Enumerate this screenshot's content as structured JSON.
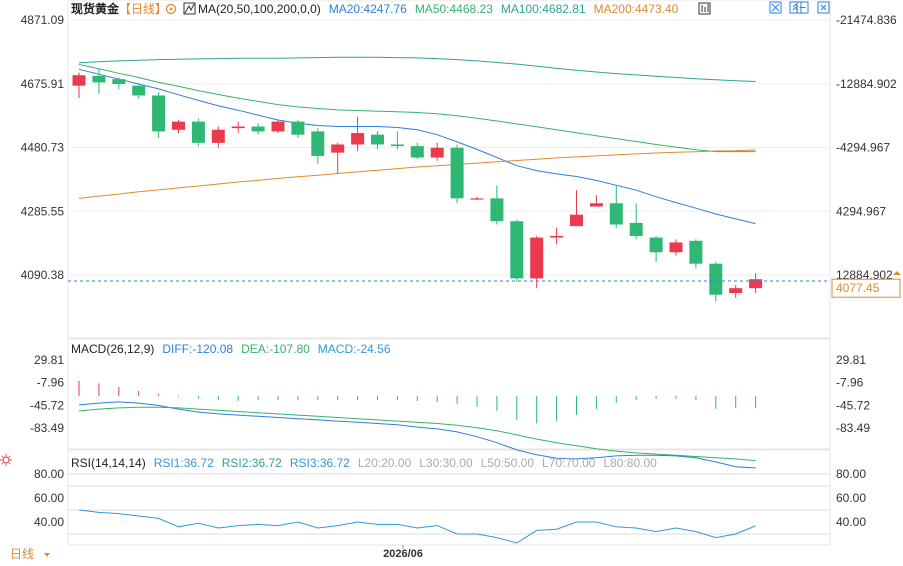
{
  "colors": {
    "up": "#ea3a4d",
    "down": "#2eb873",
    "ma20": "#2f7fd8",
    "ma50": "#36b36b",
    "ma100": "#2ea39a",
    "ma200": "#e08a2e",
    "diff": "#2f7fd8",
    "dea": "#36b36b",
    "rsi1": "#2f9ad8",
    "price_label": "#e08a2e",
    "grid": "#eeeeee",
    "axis_text": "#333333"
  },
  "header": {
    "main": {
      "symbol": "现货黄金",
      "period": "【日线】",
      "ma": "MA(20,50,100,200,0,0)",
      "ma20": "MA20:4247.76",
      "ma50": "MA50:4468.23",
      "ma100": "MA100:4682.81",
      "ma200": "MA200:4473.40"
    },
    "macd": {
      "title": "MACD(26,12,9)",
      "diff": "DIFF:-120.08",
      "dea": "DEA:-107.80",
      "macd": "MACD:-24.56"
    },
    "rsi": {
      "title": "RSI(14,14,14)",
      "rsi1": "RSI1:36.72",
      "rsi2": "RSI2:36.72",
      "rsi3": "RSI3:36.72",
      "l20": "L20:20.00",
      "l30": "L30:30.00",
      "l50": "L50:50.00",
      "l70": "L70:70.00",
      "l80": "L80:80.00"
    }
  },
  "toolbar": {
    "icons": [
      "expand-icon",
      "collapse-icon",
      "minimize-icon",
      "close-icon"
    ]
  },
  "bottom": {
    "period_label": "日线",
    "date_label": "2026/06"
  },
  "chart_data": [
    {
      "type": "candlestick",
      "name_printed": "现货黄金【日线】",
      "ylim": [
        3975,
        4871.09
      ],
      "left_ticks": [
        "4871.09",
        "4675.91",
        "4480.73",
        "4285.55",
        "4090.38"
      ],
      "right_ticks": [
        "-21474.836",
        "-12884.902",
        "-4294.967",
        "4294.967",
        "12884.902"
      ],
      "last_price": "4077.45",
      "ohlc": [
        [
          4670,
          4702,
          4632,
          4710
        ],
        [
          4700,
          4680,
          4645,
          4720
        ],
        [
          4690,
          4675,
          4660,
          4695
        ],
        [
          4670,
          4640,
          4630,
          4678
        ],
        [
          4640,
          4530,
          4510,
          4650
        ],
        [
          4535,
          4560,
          4525,
          4565
        ],
        [
          4560,
          4495,
          4485,
          4570
        ],
        [
          4495,
          4535,
          4480,
          4545
        ],
        [
          4540,
          4545,
          4525,
          4560
        ],
        [
          4545,
          4530,
          4520,
          4555
        ],
        [
          4530,
          4560,
          4525,
          4565
        ],
        [
          4560,
          4520,
          4510,
          4565
        ],
        [
          4530,
          4455,
          4430,
          4540
        ],
        [
          4465,
          4490,
          4400,
          4495
        ],
        [
          4490,
          4525,
          4470,
          4575
        ],
        [
          4520,
          4490,
          4475,
          4530
        ],
        [
          4490,
          4485,
          4475,
          4530
        ],
        [
          4485,
          4450,
          4445,
          4495
        ],
        [
          4450,
          4480,
          4440,
          4495
        ],
        [
          4480,
          4325,
          4310,
          4490
        ],
        [
          4325,
          4325,
          4320,
          4330
        ],
        [
          4325,
          4255,
          4245,
          4365
        ],
        [
          4255,
          4080,
          4070,
          4260
        ],
        [
          4080,
          4205,
          4050,
          4210
        ],
        [
          4205,
          4210,
          4185,
          4235
        ],
        [
          4240,
          4275,
          4240,
          4350
        ],
        [
          4300,
          4310,
          4300,
          4335
        ],
        [
          4310,
          4245,
          4235,
          4365
        ],
        [
          4250,
          4210,
          4200,
          4310
        ],
        [
          4205,
          4160,
          4130,
          4210
        ],
        [
          4160,
          4190,
          4150,
          4200
        ],
        [
          4195,
          4125,
          4110,
          4200
        ],
        [
          4125,
          4030,
          4010,
          4130
        ],
        [
          4035,
          4050,
          4020,
          4060
        ],
        [
          4050,
          4077.45,
          4035,
          4095
        ]
      ],
      "ma20": [
        4720,
        4705,
        4690,
        4675,
        4660,
        4642,
        4625,
        4608,
        4595,
        4580,
        4565,
        4555,
        4548,
        4545,
        4545,
        4545,
        4542,
        4535,
        4520,
        4498,
        4475,
        4450,
        4425,
        4410,
        4400,
        4392,
        4380,
        4365,
        4350,
        4330,
        4312,
        4295,
        4277,
        4262,
        4247.76
      ],
      "ma50": [
        4735,
        4722,
        4708,
        4695,
        4680,
        4668,
        4655,
        4643,
        4632,
        4622,
        4612,
        4605,
        4600,
        4596,
        4594,
        4592,
        4590,
        4588,
        4584,
        4578,
        4570,
        4562,
        4553,
        4544,
        4535,
        4526,
        4517,
        4508,
        4499,
        4490,
        4482,
        4474,
        4468.23,
        4468.23,
        4468.23
      ],
      "ma100": [
        4740,
        4743,
        4746,
        4748,
        4750,
        4751,
        4752,
        4753,
        4754,
        4754,
        4754,
        4755,
        4756,
        4757,
        4757,
        4757,
        4756,
        4755,
        4753,
        4750,
        4746,
        4741,
        4736,
        4730,
        4723,
        4717,
        4712,
        4707,
        4703,
        4699,
        4695,
        4691,
        4688,
        4685,
        4682.81
      ],
      "ma200": [
        4325,
        4332,
        4338,
        4345,
        4351,
        4357,
        4363,
        4369,
        4375,
        4380,
        4386,
        4391,
        4396,
        4401,
        4406,
        4411,
        4416,
        4421,
        4425,
        4429,
        4433,
        4437,
        4441,
        4445,
        4449,
        4452,
        4455,
        4458,
        4461,
        4464,
        4466,
        4468,
        4470,
        4471,
        4473.4
      ]
    },
    {
      "type": "macd",
      "name_printed": "MACD(26,12,9)",
      "ylim": [
        -130,
        40
      ],
      "ticks": [
        "29.81",
        "-7.96",
        "-45.72",
        "-83.49"
      ],
      "tick_values": [
        29.81,
        -7.96,
        -45.72,
        -83.49
      ],
      "diff": [
        -15,
        -12,
        -10,
        -12,
        -16,
        -22,
        -27,
        -30,
        -32,
        -34,
        -36,
        -38,
        -40,
        -42,
        -44,
        -46,
        -48,
        -52,
        -55,
        -60,
        -68,
        -78,
        -90,
        -98,
        -104,
        -105,
        -103,
        -100,
        -99,
        -99,
        -100,
        -103,
        -110,
        -118,
        -120.08
      ],
      "dea": [
        -25,
        -22,
        -20,
        -19,
        -19,
        -20,
        -22,
        -24,
        -26,
        -28,
        -30,
        -32,
        -34,
        -36,
        -38,
        -40,
        -42,
        -44,
        -46,
        -49,
        -53,
        -58,
        -65,
        -72,
        -78,
        -83,
        -88,
        -92,
        -95,
        -97,
        -99,
        -101,
        -103,
        -105,
        -107.8
      ],
      "macd": [
        30,
        25,
        18,
        10,
        4,
        -2,
        -6,
        -8,
        -10,
        -8,
        -8,
        -8,
        -8,
        -8,
        -8,
        -8,
        -8,
        -10,
        -12,
        -16,
        -22,
        -30,
        -48,
        -55,
        -50,
        -38,
        -26,
        -14,
        -8,
        -6,
        -6,
        -8,
        -26,
        -24,
        -24.56
      ]
    },
    {
      "type": "line",
      "name_printed": "RSI(14,14,14)",
      "ylim": [
        20,
        92
      ],
      "ticks": [
        "80.00",
        "60.00",
        "40.00"
      ],
      "tick_values": [
        80,
        60,
        40
      ],
      "rsi1": [
        50,
        48,
        47,
        45,
        43,
        36,
        39,
        35,
        37,
        38,
        37,
        40,
        35,
        37,
        40,
        38,
        38,
        35,
        37,
        30,
        30,
        27,
        22,
        33,
        34,
        40,
        40,
        36,
        35,
        32,
        35,
        32,
        27,
        30,
        36.72
      ]
    }
  ]
}
